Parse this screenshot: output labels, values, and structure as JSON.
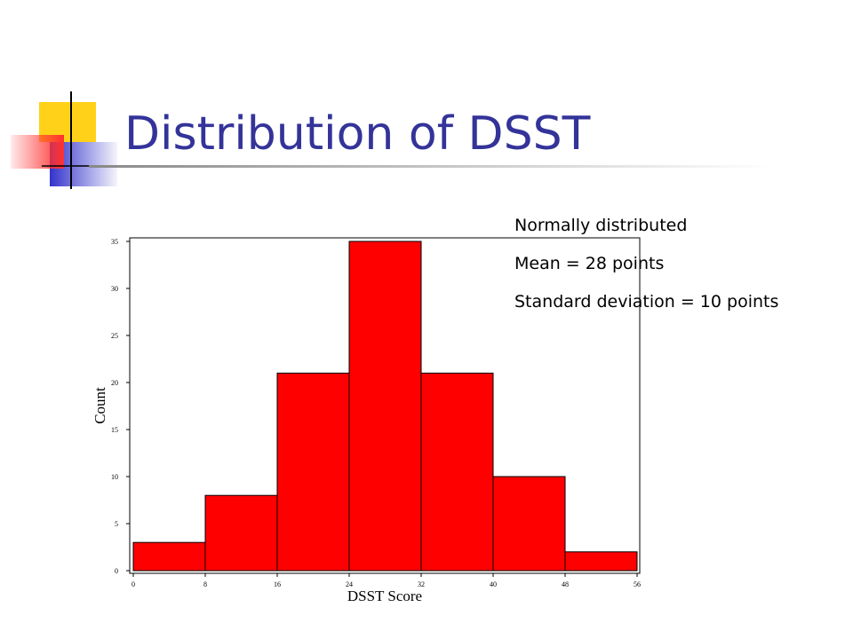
{
  "chart_data": {
    "type": "histogram",
    "title": "Distribution of DSST",
    "annotations": [
      "Normally distributed",
      "Mean = 28 points",
      "Standard deviation = 10 points"
    ],
    "xlabel": "DSST Score",
    "ylabel": "Count",
    "bins": [
      0,
      8,
      16,
      24,
      32,
      40,
      48,
      56
    ],
    "values": [
      3,
      8,
      21,
      35,
      21,
      10,
      2
    ],
    "color": "#ff0000",
    "xlim": [
      0,
      56
    ],
    "xticks": [
      0,
      8,
      16,
      24,
      32,
      40,
      48,
      56
    ],
    "ylim": [
      0,
      35
    ],
    "yticks": [
      0,
      5,
      10,
      15,
      20,
      25,
      30,
      35
    ]
  }
}
